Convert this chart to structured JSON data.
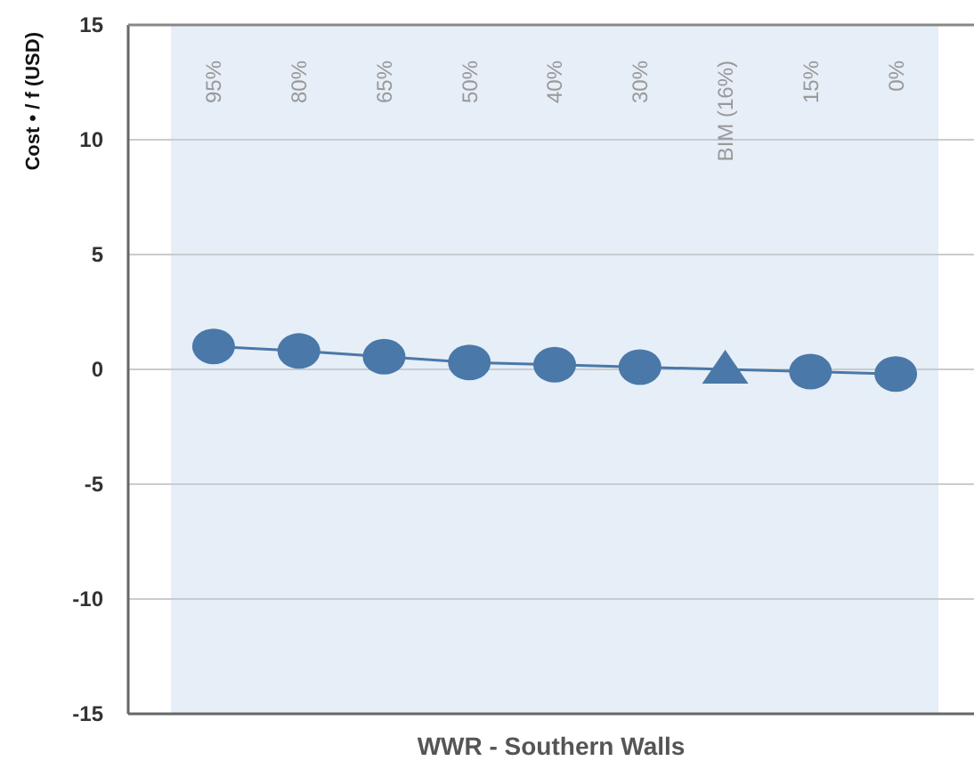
{
  "chart_data": {
    "type": "line",
    "xlabel": "WWR - Southern Walls",
    "ylabel": "Cost • / f (USD)",
    "categories": [
      "95%",
      "80%",
      "65%",
      "50%",
      "40%",
      "30%",
      "BIM (16%)",
      "15%",
      "0%"
    ],
    "series": [
      {
        "color": "#4a78a8",
        "marker": "none",
        "values": [
          1.0,
          0.8,
          0.55,
          0.3,
          0.2,
          0.1,
          0,
          -0.1,
          -0.2
        ]
      },
      {
        "type": "scatter",
        "color": "#4a78a8",
        "marker": "circle",
        "values": [
          1.0,
          0.8,
          0.55,
          0.3,
          0.2,
          0.1,
          null,
          -0.1,
          -0.2
        ]
      },
      {
        "type": "scatter",
        "color": "#4a78a8",
        "marker": "triangle",
        "values": [
          null,
          null,
          null,
          null,
          null,
          null,
          0,
          null,
          null
        ]
      }
    ],
    "ylim": [
      -15,
      15
    ],
    "yticks": [
      -15,
      -10,
      -5,
      0,
      5,
      10,
      15
    ],
    "grid": "y",
    "bands": [
      {
        "axis": "x",
        "from": "95%",
        "to": "0%",
        "color": "#e6eef7"
      }
    ]
  }
}
